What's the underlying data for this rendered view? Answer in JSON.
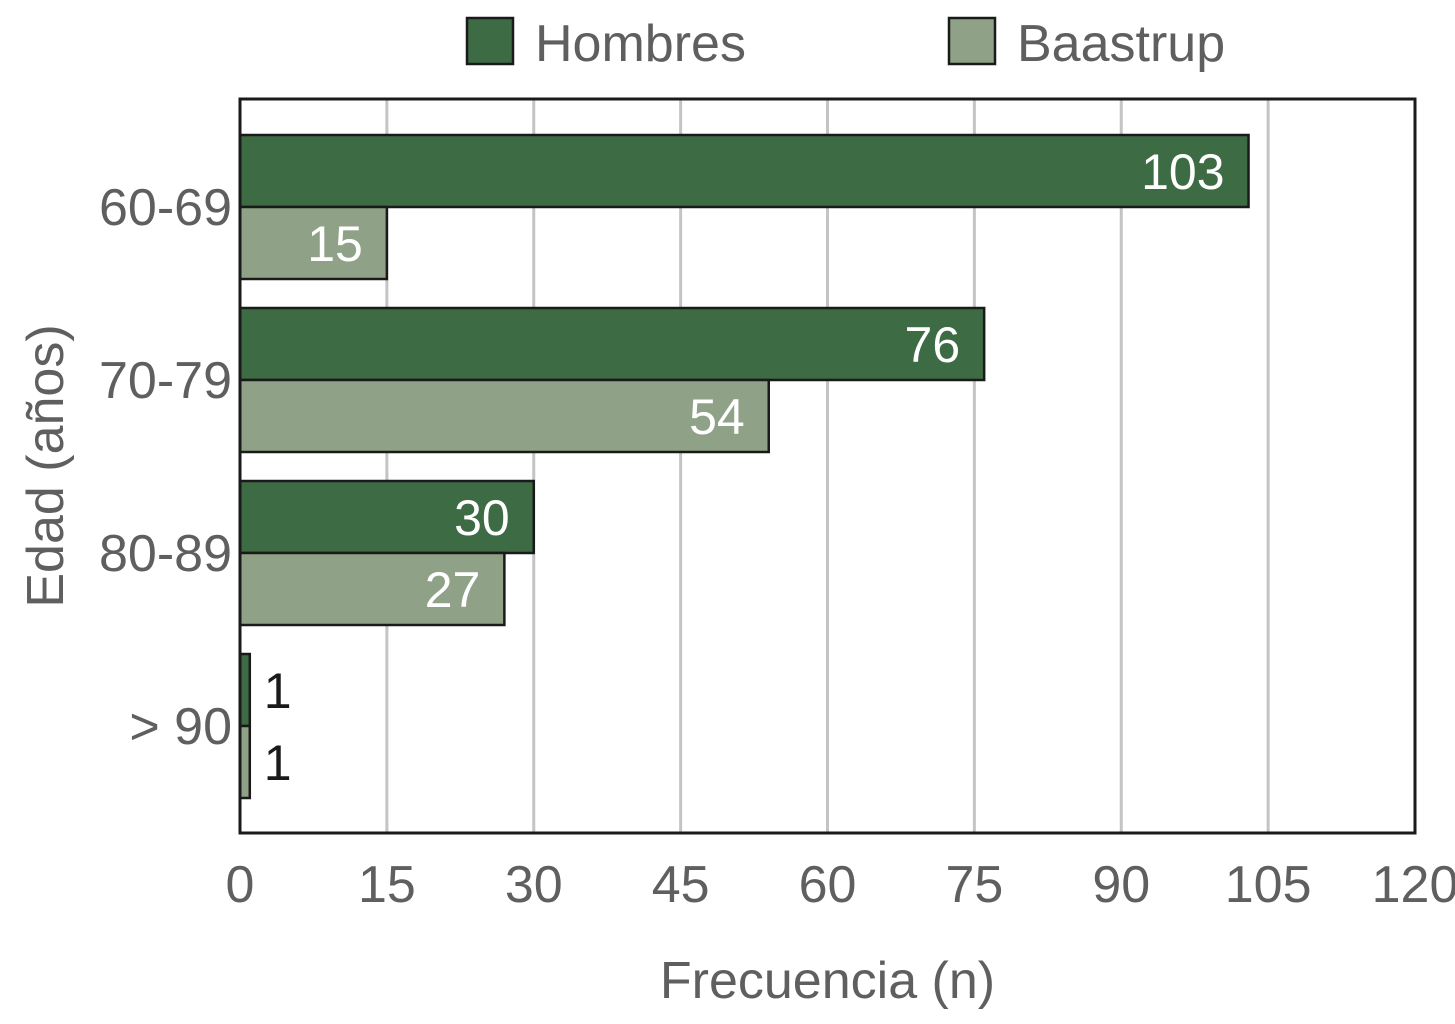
{
  "chart_data": {
    "type": "bar",
    "orientation": "horizontal",
    "categories": [
      "60-69",
      "70-79",
      "80-89",
      "> 90"
    ],
    "series": [
      {
        "name": "Hombres",
        "values": [
          103,
          76,
          30,
          1
        ],
        "color": "#3d6b44"
      },
      {
        "name": "Baastrup",
        "values": [
          15,
          54,
          27,
          1
        ],
        "color": "#8fa287"
      }
    ],
    "xlabel": "Frecuencia (n)",
    "ylabel": "Edad (años)",
    "xlim": [
      0,
      120
    ],
    "xticks": [
      "0",
      "15",
      "30",
      "45",
      "60",
      "75",
      "90",
      "105",
      "120"
    ],
    "grid": "vertical",
    "legend_position": "top"
  }
}
